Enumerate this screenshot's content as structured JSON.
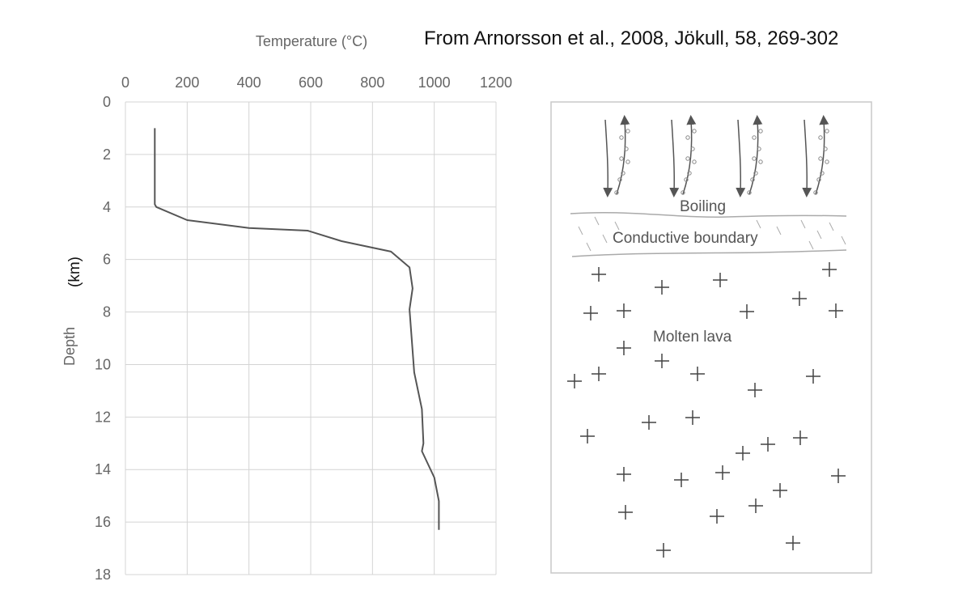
{
  "source": "From Arnorsson et al., 2008, Jökull, 58, 269-302",
  "chart_data": {
    "type": "line",
    "xlabel": "Temperature (°C)",
    "ylabel": "Depth",
    "ylabel_unit": "(km)",
    "xlim": [
      0,
      1200
    ],
    "ylim": [
      0,
      18
    ],
    "y_inverted": true,
    "x_axis_position": "top",
    "xticks": [
      0,
      200,
      400,
      600,
      800,
      1000,
      1200
    ],
    "yticks": [
      0,
      2,
      4,
      6,
      8,
      10,
      12,
      14,
      16,
      18
    ],
    "grid": true,
    "series": [
      {
        "x": [
          95,
          95,
          100,
          200,
          400,
          590,
          700,
          860,
          920,
          930,
          920,
          935,
          960,
          965,
          960,
          1000,
          1015,
          1015
        ],
        "y": [
          1.0,
          3.9,
          4.0,
          4.5,
          4.8,
          4.9,
          5.3,
          5.7,
          6.3,
          7.1,
          7.9,
          10.3,
          11.7,
          13.0,
          13.3,
          14.3,
          15.2,
          16.3
        ]
      }
    ],
    "color": "#555555",
    "grid_color": "#d4d4d4"
  },
  "diagram": {
    "labels": {
      "boiling": "Boiling",
      "conductive": "Conductive boundary",
      "molten": "Molten lava"
    },
    "arrow_groups": 4,
    "crosses": 36
  }
}
